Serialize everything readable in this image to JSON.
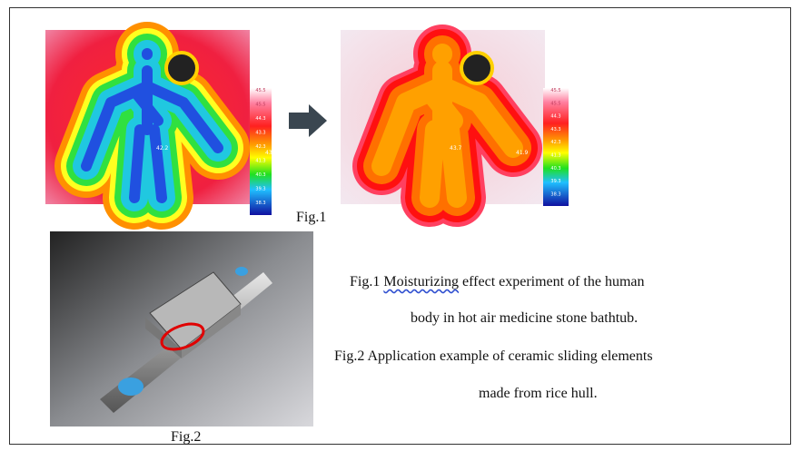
{
  "figure1": {
    "label": "Fig.1",
    "before_scale": [
      "45.5",
      "45.5",
      "44.3",
      "43.3",
      "42.3",
      "41.3",
      "40.3",
      "39.3",
      "38.3"
    ],
    "after_scale": [
      "45.5",
      "45.5",
      "44.3",
      "43.3",
      "42.3",
      "41.3",
      "40.3",
      "39.3",
      "38.3"
    ],
    "before_points": [
      "42.2",
      "43.5"
    ],
    "after_points": [
      "43.7",
      "41.9"
    ]
  },
  "figure2": {
    "label": "Fig.2"
  },
  "caption": {
    "line1": [
      "Fig.1 ",
      "Moisturizing",
      " effect experiment of the human"
    ],
    "line2": "body in hot air medicine stone bathtub.",
    "line3": "Fig.2 Application example of ceramic sliding elements",
    "line4": "made from rice hull."
  }
}
